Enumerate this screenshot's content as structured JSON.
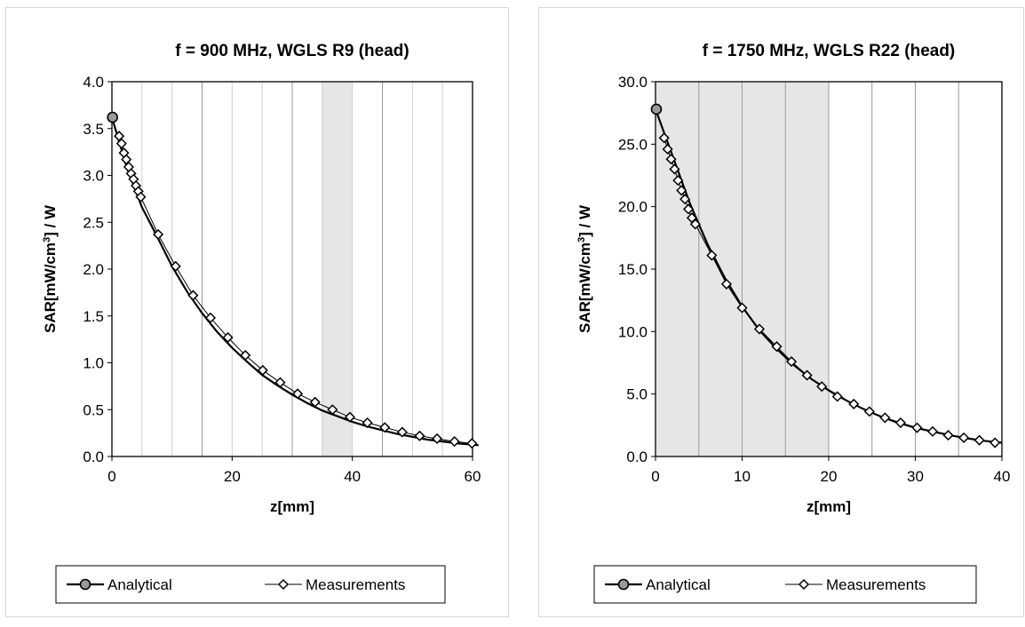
{
  "chart_data": [
    {
      "type": "line",
      "title": "f = 900 MHz, WGLS R9 (head)",
      "xlabel": "z[mm]",
      "ylabel": "SAR[mW/cm3] / W",
      "xlim": [
        0,
        60
      ],
      "ylim": [
        0,
        4
      ],
      "x_ticks": [
        "0",
        "20",
        "40",
        "60"
      ],
      "y_ticks": [
        "0.0",
        "0.5",
        "1.0",
        "1.5",
        "2.0",
        "2.5",
        "3.0",
        "3.5",
        "4.0"
      ],
      "grid": "vertical",
      "shaded_region": [
        35,
        40
      ],
      "legend_position": "bottom",
      "series": [
        {
          "name": "Analytical",
          "marker": "circle",
          "x": [
            0,
            2.5,
            5,
            7.5,
            10,
            12.5,
            15,
            17.5,
            20,
            22.5,
            25,
            27.5,
            30,
            32.5,
            35,
            37.5,
            40,
            42.5,
            45,
            47.5,
            50,
            52.5,
            55,
            57.5,
            61
          ],
          "y": [
            3.62,
            3.08,
            2.66,
            2.35,
            2.03,
            1.76,
            1.53,
            1.33,
            1.16,
            1.01,
            0.87,
            0.76,
            0.66,
            0.57,
            0.49,
            0.43,
            0.37,
            0.32,
            0.28,
            0.24,
            0.21,
            0.18,
            0.16,
            0.14,
            0.12
          ],
          "point_markers": [
            {
              "x": 0.1,
              "y": 3.62
            }
          ]
        },
        {
          "name": "Measurements",
          "marker": "diamond",
          "x": [
            1.2,
            1.6,
            2.0,
            2.4,
            2.8,
            3.2,
            3.6,
            4.0,
            4.4,
            4.8,
            7.7,
            10.6,
            13.5,
            16.4,
            19.3,
            22.2,
            25.1,
            28.0,
            30.9,
            33.8,
            36.7,
            39.6,
            42.5,
            45.4,
            48.3,
            51.2,
            54.1,
            57.0,
            59.9
          ],
          "y": [
            3.42,
            3.34,
            3.24,
            3.17,
            3.09,
            3.02,
            2.96,
            2.89,
            2.83,
            2.77,
            2.37,
            2.03,
            1.72,
            1.48,
            1.27,
            1.08,
            0.92,
            0.79,
            0.67,
            0.58,
            0.5,
            0.42,
            0.36,
            0.31,
            0.26,
            0.22,
            0.19,
            0.16,
            0.14
          ]
        }
      ]
    },
    {
      "type": "line",
      "title": "f = 1750 MHz, WGLS R22 (head)",
      "xlabel": "z[mm]",
      "ylabel": "SAR[mW/cm3] / W",
      "xlim": [
        0,
        40
      ],
      "ylim": [
        0,
        30
      ],
      "x_ticks": [
        "0",
        "10",
        "20",
        "30",
        "40"
      ],
      "y_ticks": [
        "0.0",
        "5.0",
        "10.0",
        "15.0",
        "20.0",
        "25.0",
        "30.0"
      ],
      "grid": "vertical",
      "shaded_region": [
        0,
        20
      ],
      "legend_position": "bottom",
      "series": [
        {
          "name": "Analytical",
          "marker": "circle",
          "x": [
            0,
            2,
            4,
            6,
            8,
            10,
            12,
            14,
            16,
            18,
            20,
            22,
            24,
            26,
            28,
            30,
            32,
            34,
            36,
            38,
            40
          ],
          "y": [
            27.8,
            24.0,
            20.2,
            17.0,
            14.3,
            12.0,
            10.1,
            8.6,
            7.3,
            6.2,
            5.3,
            4.5,
            3.8,
            3.2,
            2.7,
            2.3,
            2.0,
            1.7,
            1.45,
            1.25,
            1.1
          ],
          "point_markers": [
            {
              "x": 0.1,
              "y": 27.8
            }
          ]
        },
        {
          "name": "Measurements",
          "marker": "diamond",
          "x": [
            1.0,
            1.4,
            1.8,
            2.2,
            2.6,
            3.0,
            3.4,
            3.8,
            4.2,
            4.6,
            6.5,
            8.2,
            10.0,
            12.0,
            14.0,
            15.7,
            17.5,
            19.2,
            21.0,
            22.9,
            24.7,
            26.5,
            28.3,
            30.2,
            32.0,
            33.8,
            35.6,
            37.4,
            39.2
          ],
          "y": [
            25.5,
            24.6,
            23.8,
            23.0,
            22.1,
            21.3,
            20.6,
            19.8,
            19.1,
            18.6,
            16.1,
            13.8,
            11.9,
            10.2,
            8.8,
            7.6,
            6.5,
            5.6,
            4.8,
            4.2,
            3.6,
            3.1,
            2.7,
            2.3,
            2.0,
            1.7,
            1.5,
            1.3,
            1.1
          ]
        }
      ]
    }
  ]
}
